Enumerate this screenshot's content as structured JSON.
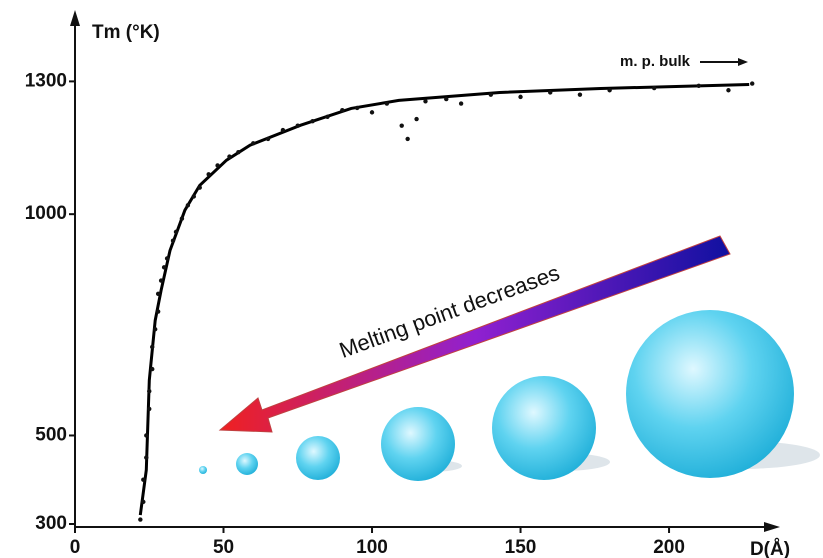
{
  "chart_data": {
    "type": "scatter",
    "y_label": "Tm (°K)",
    "x_label": "D(Å)",
    "xlim": [
      0,
      235
    ],
    "ylim": [
      300,
      1450
    ],
    "xticks": [
      0,
      50,
      100,
      150,
      200
    ],
    "yticks": [
      300,
      500,
      1000,
      1300
    ],
    "annotations": [
      "m. p. bulk",
      "Melting point decreases"
    ],
    "points": {
      "color": "#111111",
      "x": [
        22,
        23,
        23,
        24,
        24,
        25,
        25,
        26,
        26,
        27,
        28,
        28,
        29,
        30,
        31,
        33,
        34,
        36,
        38,
        40,
        42,
        45,
        48,
        52,
        55,
        60,
        65,
        70,
        75,
        80,
        85,
        90,
        95,
        100,
        105,
        110,
        112,
        115,
        118,
        125,
        130,
        140,
        150,
        160,
        170,
        180,
        195,
        210,
        220,
        228
      ],
      "y": [
        310,
        350,
        400,
        450,
        500,
        560,
        600,
        650,
        700,
        740,
        780,
        820,
        850,
        880,
        900,
        940,
        960,
        990,
        1020,
        1040,
        1060,
        1090,
        1110,
        1130,
        1140,
        1160,
        1170,
        1190,
        1200,
        1210,
        1220,
        1235,
        1240,
        1230,
        1250,
        1200,
        1170,
        1215,
        1255,
        1260,
        1250,
        1270,
        1265,
        1275,
        1270,
        1280,
        1285,
        1290,
        1280,
        1295
      ]
    },
    "fit": {
      "color": "#000000",
      "x": [
        22,
        24,
        25,
        27,
        29,
        32,
        37,
        42,
        51,
        59,
        76,
        93,
        109,
        143,
        177,
        227
      ],
      "y": [
        320,
        422,
        625,
        760,
        828,
        918,
        1009,
        1065,
        1122,
        1156,
        1201,
        1239,
        1257,
        1275,
        1284,
        1293
      ]
    }
  }
}
